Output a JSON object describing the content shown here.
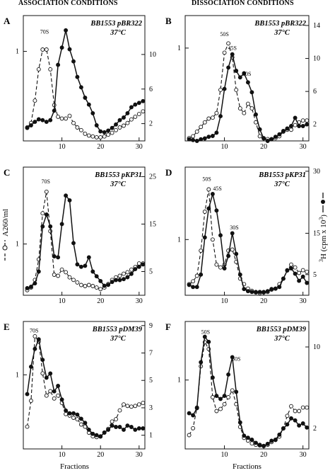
{
  "headers": {
    "left": "ASSOCIATION CONDITIONS",
    "right": "DISSOCIATION CONDITIONS"
  },
  "left_axis_label": "A260/ml",
  "right_axis_label_prefix": "3",
  "right_axis_label_rest": "H (cpm x 10",
  "right_axis_label_sup": "3",
  "right_axis_label_close": ")",
  "x_axis_label": "Fractions",
  "chart_data": [
    {
      "panel": "A",
      "type": "line",
      "caption_strain": "BB1553 pBR322",
      "caption_temp": "37°C",
      "x_ticks": [
        10,
        20,
        30
      ],
      "left_ticks": [
        1
      ],
      "right_ticks": [
        2,
        6,
        10
      ],
      "annotations": [
        {
          "text": "70S",
          "x": 5.5,
          "y": 1.2
        }
      ],
      "series": [
        {
          "style": "open-dashed",
          "axis": "left",
          "x": [
            1,
            2,
            3,
            4,
            5,
            6,
            7,
            8,
            9,
            10,
            11,
            12,
            13,
            14,
            15,
            16,
            17,
            18,
            19,
            20,
            21,
            22,
            23,
            24,
            25,
            26,
            27,
            28,
            29,
            30,
            31
          ],
          "y": [
            0.15,
            0.2,
            0.45,
            0.8,
            1.02,
            1.02,
            0.8,
            0.4,
            0.27,
            0.25,
            0.25,
            0.28,
            0.2,
            0.15,
            0.12,
            0.08,
            0.06,
            0.05,
            0.04,
            0.04,
            0.05,
            0.07,
            0.09,
            0.12,
            0.15,
            0.17,
            0.2,
            0.24,
            0.27,
            0.3,
            0.33
          ]
        },
        {
          "style": "filled-solid",
          "axis": "right",
          "x": [
            1,
            2,
            3,
            4,
            5,
            6,
            7,
            8,
            9,
            10,
            11,
            12,
            13,
            14,
            15,
            16,
            17,
            18,
            19,
            20,
            21,
            22,
            23,
            24,
            25,
            26,
            27,
            28,
            29,
            30,
            31
          ],
          "y": [
            1.5,
            1.8,
            2.2,
            2.5,
            2.4,
            2.2,
            2.4,
            3.5,
            8.8,
            10.8,
            12.8,
            10.6,
            9.2,
            7.4,
            6.2,
            5.0,
            4.2,
            3.2,
            1.8,
            1.1,
            1.0,
            1.2,
            1.5,
            1.9,
            2.4,
            2.7,
            3.2,
            3.9,
            4.2,
            4.4,
            4.6
          ]
        }
      ],
      "left_ylim": [
        0,
        1.4
      ],
      "right_ylim": [
        0,
        14.5
      ],
      "xlim": [
        0,
        31.5
      ]
    },
    {
      "panel": "B",
      "type": "line",
      "caption_strain": "BB1553 pBR322",
      "caption_temp": "37°C",
      "x_ticks": [
        10,
        20,
        30
      ],
      "left_ticks": [
        1
      ],
      "right_ticks": [
        2,
        6,
        10,
        14
      ],
      "annotations": [
        {
          "text": "50S",
          "x": 10,
          "y": 1.13
        },
        {
          "text": "45S",
          "x": 12,
          "y": 0.98
        },
        {
          "text": "30S",
          "x": 15.7,
          "y": 0.7
        }
      ],
      "series": [
        {
          "style": "open-dashed",
          "axis": "left",
          "x": [
            1,
            2,
            3,
            4,
            5,
            6,
            7,
            8,
            9,
            10,
            11,
            12,
            13,
            14,
            15,
            16,
            17,
            18,
            19,
            20,
            21,
            22,
            23,
            24,
            25,
            26,
            27,
            28,
            29,
            30,
            31
          ],
          "y": [
            0.03,
            0.05,
            0.1,
            0.15,
            0.2,
            0.24,
            0.25,
            0.3,
            0.55,
            0.95,
            1.05,
            0.9,
            0.55,
            0.35,
            0.3,
            0.4,
            0.35,
            0.2,
            0.05,
            0.03,
            0.02,
            0.02,
            0.03,
            0.05,
            0.1,
            0.12,
            0.12,
            0.17,
            0.2,
            0.22,
            0.22
          ]
        },
        {
          "style": "filled-solid",
          "axis": "right",
          "x": [
            1,
            2,
            3,
            4,
            5,
            6,
            7,
            8,
            9,
            10,
            11,
            12,
            13,
            14,
            15,
            16,
            17,
            18,
            19,
            20,
            21,
            22,
            23,
            24,
            25,
            26,
            27,
            28,
            29,
            30,
            31
          ],
          "y": [
            0.2,
            0.1,
            0.0,
            0.2,
            0.3,
            0.5,
            0.6,
            1.0,
            3.0,
            6.3,
            8.9,
            10.5,
            8.5,
            7.7,
            8.2,
            7.1,
            5.9,
            3.2,
            1.4,
            0.3,
            0.0,
            0.2,
            0.5,
            0.8,
            1.2,
            1.5,
            1.8,
            2.8,
            1.8,
            1.8,
            2.0
          ]
        }
      ],
      "left_ylim": [
        0,
        1.35
      ],
      "right_ylim": [
        0,
        15.2
      ],
      "xlim": [
        0,
        31.5
      ]
    },
    {
      "panel": "C",
      "type": "line",
      "caption_strain": "BB1553 pKP31",
      "caption_temp": "37°C",
      "x_ticks": [
        10,
        20,
        30
      ],
      "left_ticks": [
        1
      ],
      "right_ticks": [
        5,
        15,
        25
      ],
      "annotations": [
        {
          "text": "70S",
          "x": 5.8,
          "y": 2.18
        }
      ],
      "series": [
        {
          "style": "open-dashed",
          "axis": "left",
          "x": [
            1,
            2,
            3,
            4,
            5,
            6,
            7,
            8,
            9,
            10,
            11,
            12,
            13,
            14,
            15,
            16,
            17,
            18,
            19,
            20,
            21,
            22,
            23,
            24,
            25,
            26,
            27,
            28,
            29,
            30,
            31
          ],
          "y": [
            0.1,
            0.15,
            0.3,
            0.7,
            1.6,
            2.02,
            1.25,
            0.4,
            0.38,
            0.5,
            0.45,
            0.35,
            0.3,
            0.25,
            0.2,
            0.18,
            0.2,
            0.18,
            0.15,
            0.12,
            0.15,
            0.22,
            0.3,
            0.35,
            0.38,
            0.42,
            0.45,
            0.5,
            0.55,
            0.62,
            0.62
          ]
        },
        {
          "style": "filled-solid",
          "axis": "right",
          "x": [
            1,
            2,
            3,
            4,
            5,
            6,
            7,
            8,
            9,
            10,
            11,
            12,
            13,
            14,
            15,
            16,
            17,
            18,
            19,
            20,
            21,
            22,
            23,
            24,
            25,
            26,
            27,
            28,
            29,
            30,
            31
          ],
          "y": [
            1.5,
            1.8,
            2.5,
            5.0,
            14.5,
            17.0,
            14.5,
            8.2,
            8.0,
            15.0,
            21.0,
            20.0,
            11.0,
            6.5,
            6.0,
            6.2,
            8.0,
            5.0,
            4.0,
            3.0,
            2.0,
            2.2,
            2.8,
            3.2,
            3.2,
            3.4,
            3.8,
            4.5,
            5.5,
            6.0,
            6.5
          ]
        }
      ],
      "left_ylim": [
        0,
        2.5
      ],
      "right_ylim": [
        0,
        27
      ],
      "xlim": [
        0,
        31.5
      ]
    },
    {
      "panel": "D",
      "type": "line",
      "caption_strain": "BB1553 pKP31",
      "caption_temp": "37°C",
      "x_ticks": [
        10,
        20,
        30
      ],
      "left_ticks": [
        1
      ],
      "right_ticks": [
        5,
        15,
        30
      ],
      "annotations": [
        {
          "text": "50S",
          "x": 5.5,
          "y": 2.05
        },
        {
          "text": "45S",
          "x": 8.2,
          "y": 1.88
        },
        {
          "text": "30S",
          "x": 12.5,
          "y": 1.18
        }
      ],
      "series": [
        {
          "style": "open-dashed",
          "axis": "left",
          "x": [
            1,
            2,
            3,
            4,
            5,
            6,
            7,
            8,
            9,
            10,
            11,
            12,
            13,
            14,
            15,
            16,
            17,
            18,
            19,
            20,
            21,
            22,
            23,
            24,
            25,
            26,
            27,
            28,
            29,
            30,
            31
          ],
          "y": [
            0.2,
            0.25,
            0.35,
            0.8,
            1.5,
            1.9,
            1.0,
            0.55,
            0.5,
            0.55,
            0.8,
            0.82,
            0.6,
            0.3,
            0.2,
            0.12,
            0.08,
            0.05,
            0.04,
            0.05,
            0.06,
            0.1,
            0.12,
            0.2,
            0.3,
            0.45,
            0.55,
            0.5,
            0.4,
            0.45,
            0.42
          ]
        },
        {
          "style": "filled-solid",
          "axis": "right",
          "x": [
            1,
            2,
            3,
            4,
            5,
            6,
            7,
            8,
            9,
            10,
            11,
            12,
            13,
            14,
            15,
            16,
            17,
            18,
            19,
            20,
            21,
            22,
            23,
            24,
            25,
            26,
            27,
            28,
            29,
            30,
            31
          ],
          "y": [
            2.5,
            2.0,
            2.0,
            5.0,
            14.0,
            21.0,
            24.5,
            20.5,
            14.5,
            6.5,
            9.5,
            15.0,
            10.0,
            5.0,
            1.5,
            1.0,
            0.8,
            0.8,
            0.8,
            0.8,
            1.0,
            1.5,
            1.6,
            2.0,
            4.0,
            6.0,
            6.5,
            5.2,
            3.5,
            4.5,
            3.0
          ]
        }
      ],
      "left_ylim": [
        0,
        2.3
      ],
      "right_ylim": [
        0,
        31
      ],
      "xlim": [
        0,
        31.5
      ]
    },
    {
      "panel": "E",
      "type": "line",
      "caption_strain": "BB1553 pDM39",
      "caption_temp": "37°C",
      "x_ticks": [
        10,
        20,
        30
      ],
      "left_ticks": [
        1
      ],
      "right_ticks": [
        1,
        3,
        5,
        7,
        9
      ],
      "annotations": [
        {
          "text": "70S",
          "x": 2.8,
          "y": 1.57
        }
      ],
      "series": [
        {
          "style": "open-dashed",
          "axis": "left",
          "x": [
            1,
            2,
            3,
            4,
            5,
            6,
            7,
            8,
            9,
            10,
            11,
            12,
            13,
            14,
            15,
            16,
            17,
            18,
            19,
            20,
            21,
            22,
            23,
            24,
            25,
            26,
            27,
            28,
            29,
            30,
            31
          ],
          "y": [
            0.3,
            0.65,
            1.52,
            1.45,
            1.02,
            0.72,
            0.78,
            0.68,
            0.72,
            0.62,
            0.47,
            0.45,
            0.42,
            0.4,
            0.33,
            0.3,
            0.22,
            0.17,
            0.16,
            0.17,
            0.22,
            0.27,
            0.37,
            0.4,
            0.52,
            0.6,
            0.58,
            0.57,
            0.58,
            0.6,
            0.62
          ]
        },
        {
          "style": "filled-solid",
          "axis": "right",
          "x": [
            1,
            2,
            3,
            4,
            5,
            6,
            7,
            8,
            9,
            10,
            11,
            12,
            13,
            14,
            15,
            16,
            17,
            18,
            19,
            20,
            21,
            22,
            23,
            24,
            25,
            26,
            27,
            28,
            29,
            30,
            31
          ],
          "y": [
            4.0,
            6.0,
            7.3,
            8.0,
            6.5,
            5.2,
            5.5,
            4.2,
            4.6,
            3.6,
            2.8,
            2.6,
            2.6,
            2.5,
            2.2,
            1.9,
            1.4,
            1.1,
            1.0,
            0.9,
            1.2,
            1.4,
            1.7,
            1.6,
            1.6,
            1.4,
            1.7,
            1.6,
            1.4,
            1.5,
            1.5
          ]
        }
      ],
      "left_ylim": [
        0,
        1.72
      ],
      "right_ylim": [
        0,
        9.3
      ],
      "xlim": [
        0,
        31.5
      ]
    },
    {
      "panel": "F",
      "type": "line",
      "caption_strain": "BB1553 pDM39",
      "caption_temp": "37°C",
      "x_ticks": [
        10,
        20,
        30
      ],
      "left_ticks": [
        1
      ],
      "right_ticks": [
        2,
        10
      ],
      "annotations": [
        {
          "text": "50S",
          "x": 5.2,
          "y": 1.67
        },
        {
          "text": "30S",
          "x": 13,
          "y": 1.28
        }
      ],
      "series": [
        {
          "style": "open-dashed",
          "axis": "left",
          "x": [
            1,
            2,
            3,
            4,
            5,
            6,
            7,
            8,
            9,
            10,
            11,
            12,
            13,
            14,
            15,
            16,
            17,
            18,
            19,
            20,
            21,
            22,
            23,
            24,
            25,
            26,
            27,
            28,
            29,
            30,
            31
          ],
          "y": [
            0.2,
            0.3,
            0.6,
            1.2,
            1.55,
            1.45,
            0.75,
            0.55,
            0.58,
            0.65,
            0.75,
            0.85,
            0.65,
            0.32,
            0.16,
            0.12,
            0.08,
            0.06,
            0.05,
            0.04,
            0.06,
            0.1,
            0.13,
            0.18,
            0.3,
            0.48,
            0.62,
            0.55,
            0.55,
            0.6,
            0.6
          ]
        },
        {
          "style": "filled-solid",
          "axis": "right",
          "x": [
            1,
            2,
            3,
            4,
            5,
            6,
            7,
            8,
            9,
            10,
            11,
            12,
            13,
            14,
            15,
            16,
            17,
            18,
            19,
            20,
            21,
            22,
            23,
            24,
            25,
            26,
            27,
            28,
            29,
            30,
            31
          ],
          "y": [
            3.5,
            3.3,
            4.0,
            8.5,
            11.0,
            10.5,
            7.0,
            5.2,
            4.9,
            5.2,
            7.3,
            9.0,
            5.6,
            2.6,
            1.3,
            1.1,
            0.9,
            0.6,
            0.4,
            0.3,
            0.5,
            0.8,
            0.9,
            1.4,
            2.0,
            2.4,
            3.0,
            2.8,
            2.3,
            2.5,
            2.1
          ]
        }
      ],
      "left_ylim": [
        0,
        1.85
      ],
      "right_ylim": [
        0,
        12.5
      ],
      "xlim": [
        0,
        31.5
      ]
    }
  ]
}
